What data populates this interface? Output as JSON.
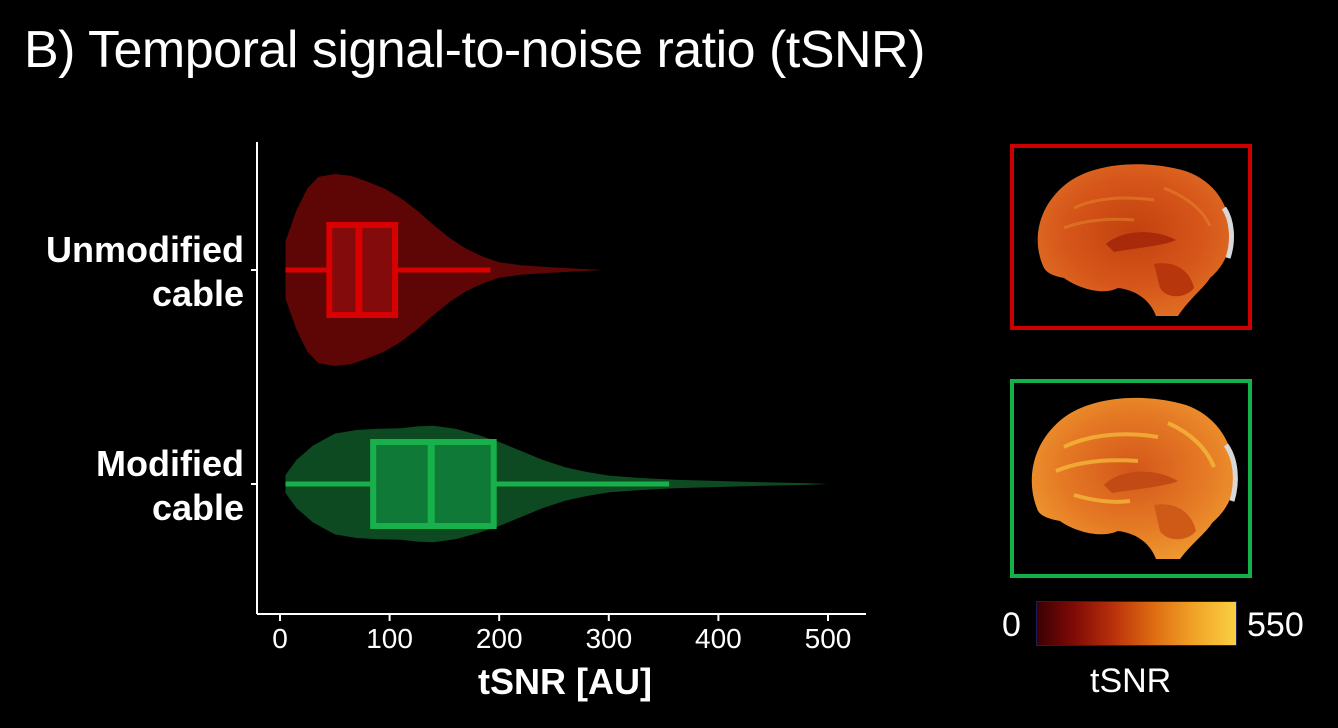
{
  "title": "B) Temporal signal-to-noise ratio (tSNR)",
  "chart_data": {
    "type": "violin",
    "xlabel": "tSNR [AU]",
    "xlim": [
      -20,
      535
    ],
    "xticks": [
      0,
      100,
      200,
      300,
      400,
      500
    ],
    "series": [
      {
        "name": "Unmodified cable",
        "label_lines": [
          "Unmodified",
          "cable"
        ],
        "color": "#d80000",
        "fill": "#5e0606",
        "box_fill": "#840b0b",
        "whisker": [
          5,
          192
        ],
        "q1": 45,
        "median": 72,
        "q3": 105,
        "violin_max": 295,
        "density": [
          [
            5,
            0.3
          ],
          [
            15,
            0.62
          ],
          [
            25,
            0.85
          ],
          [
            35,
            0.97
          ],
          [
            50,
            1.0
          ],
          [
            65,
            0.98
          ],
          [
            80,
            0.92
          ],
          [
            95,
            0.85
          ],
          [
            110,
            0.75
          ],
          [
            125,
            0.62
          ],
          [
            140,
            0.47
          ],
          [
            155,
            0.33
          ],
          [
            170,
            0.22
          ],
          [
            185,
            0.14
          ],
          [
            200,
            0.08
          ],
          [
            220,
            0.05
          ],
          [
            245,
            0.03
          ],
          [
            270,
            0.015
          ],
          [
            295,
            0.0
          ]
        ]
      },
      {
        "name": "Modified cable",
        "label_lines": [
          "Modified",
          "cable"
        ],
        "color": "#18b04a",
        "fill": "#0d4a22",
        "box_fill": "#0f7a38",
        "whisker": [
          5,
          355
        ],
        "q1": 85,
        "median": 138,
        "q3": 195,
        "violin_max": 500,
        "density": [
          [
            5,
            0.15
          ],
          [
            15,
            0.4
          ],
          [
            30,
            0.64
          ],
          [
            50,
            0.84
          ],
          [
            70,
            0.9
          ],
          [
            90,
            0.92
          ],
          [
            110,
            0.93
          ],
          [
            125,
            0.96
          ],
          [
            140,
            0.97
          ],
          [
            160,
            0.92
          ],
          [
            180,
            0.82
          ],
          [
            200,
            0.7
          ],
          [
            220,
            0.55
          ],
          [
            240,
            0.4
          ],
          [
            260,
            0.28
          ],
          [
            280,
            0.2
          ],
          [
            300,
            0.14
          ],
          [
            330,
            0.1
          ],
          [
            360,
            0.07
          ],
          [
            400,
            0.05
          ],
          [
            440,
            0.03
          ],
          [
            480,
            0.015
          ],
          [
            500,
            0.0
          ]
        ]
      }
    ]
  },
  "colorbar": {
    "min_label": "0",
    "max_label": "550",
    "label": "tSNR"
  },
  "brain_images": [
    {
      "condition": "Unmodified cable",
      "frame_color": "#cc0000"
    },
    {
      "condition": "Modified cable",
      "frame_color": "#14b048"
    }
  ]
}
